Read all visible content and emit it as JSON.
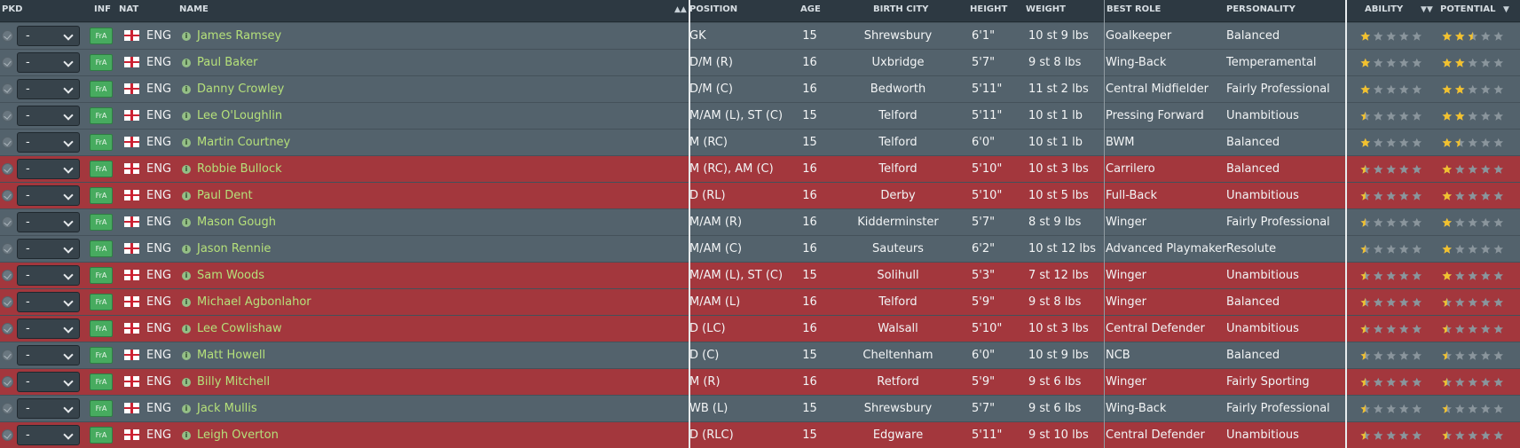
{
  "columns": {
    "pkd": "PKD",
    "inf": "INF",
    "nat": "NAT",
    "name": "NAME",
    "position": "POSITION",
    "age": "AGE",
    "birth_city": "BIRTH CITY",
    "height": "HEIGHT",
    "weight": "WEIGHT",
    "best_role": "BEST ROLE",
    "personality": "PERSONALITY",
    "ability": "ABILITY",
    "potential": "POTENTIAL"
  },
  "sort_column": "name",
  "colors": {
    "row_blue": "#53626c",
    "row_red": "#a3373d",
    "name": "#b5e07a",
    "star": "#f2c12e",
    "star_empty": "#8a959c"
  },
  "players": [
    {
      "pkd": "-",
      "inf": "FrA",
      "nat": "ENG",
      "name": "James Ramsey",
      "position": "GK",
      "age": "15",
      "birth_city": "Shrewsbury",
      "height": "6'1\"",
      "weight": "10 st 9 lbs",
      "best_role": "Goalkeeper",
      "personality": "Balanced",
      "ability": 1,
      "potential": 2.5,
      "highlight": "blue"
    },
    {
      "pkd": "-",
      "inf": "FrA",
      "nat": "ENG",
      "name": "Paul Baker",
      "position": "D/M (R)",
      "age": "16",
      "birth_city": "Uxbridge",
      "height": "5'7\"",
      "weight": "9 st 8 lbs",
      "best_role": "Wing-Back",
      "personality": "Temperamental",
      "ability": 1,
      "potential": 2,
      "highlight": "blue"
    },
    {
      "pkd": "-",
      "inf": "FrA",
      "nat": "ENG",
      "name": "Danny Crowley",
      "position": "D/M (C)",
      "age": "16",
      "birth_city": "Bedworth",
      "height": "5'11\"",
      "weight": "11 st 2 lbs",
      "best_role": "Central Midfielder",
      "personality": "Fairly Professional",
      "ability": 1,
      "potential": 2,
      "highlight": "blue"
    },
    {
      "pkd": "-",
      "inf": "FrA",
      "nat": "ENG",
      "name": "Lee O'Loughlin",
      "position": "M/AM (L), ST (C)",
      "age": "15",
      "birth_city": "Telford",
      "height": "5'11\"",
      "weight": "10 st 1 lb",
      "best_role": "Pressing Forward",
      "personality": "Unambitious",
      "ability": 0.5,
      "potential": 2,
      "highlight": "blue"
    },
    {
      "pkd": "-",
      "inf": "FrA",
      "nat": "ENG",
      "name": "Martin Courtney",
      "position": "M (RC)",
      "age": "15",
      "birth_city": "Telford",
      "height": "6'0\"",
      "weight": "10 st 1 lb",
      "best_role": "BWM",
      "personality": "Balanced",
      "ability": 1,
      "potential": 1.5,
      "highlight": "blue"
    },
    {
      "pkd": "-",
      "inf": "FrA",
      "nat": "ENG",
      "name": "Robbie Bullock",
      "position": "M (RC), AM (C)",
      "age": "16",
      "birth_city": "Telford",
      "height": "5'10\"",
      "weight": "10 st 3 lbs",
      "best_role": "Carrilero",
      "personality": "Balanced",
      "ability": 0.5,
      "potential": 1,
      "highlight": "red"
    },
    {
      "pkd": "-",
      "inf": "FrA",
      "nat": "ENG",
      "name": "Paul Dent",
      "position": "D (RL)",
      "age": "16",
      "birth_city": "Derby",
      "height": "5'10\"",
      "weight": "10 st 5 lbs",
      "best_role": "Full-Back",
      "personality": "Unambitious",
      "ability": 0.5,
      "potential": 1,
      "highlight": "red"
    },
    {
      "pkd": "-",
      "inf": "FrA",
      "nat": "ENG",
      "name": "Mason Gough",
      "position": "M/AM (R)",
      "age": "16",
      "birth_city": "Kidderminster",
      "height": "5'7\"",
      "weight": "8 st 9 lbs",
      "best_role": "Winger",
      "personality": "Fairly Professional",
      "ability": 0.5,
      "potential": 1,
      "highlight": "blue"
    },
    {
      "pkd": "-",
      "inf": "FrA",
      "nat": "ENG",
      "name": "Jason Rennie",
      "position": "M/AM (C)",
      "age": "16",
      "birth_city": "Sauteurs",
      "height": "6'2\"",
      "weight": "10 st 12 lbs",
      "best_role": "Advanced Playmaker",
      "personality": "Resolute",
      "ability": 0.5,
      "potential": 1,
      "highlight": "blue"
    },
    {
      "pkd": "-",
      "inf": "FrA",
      "nat": "ENG",
      "name": "Sam Woods",
      "position": "M/AM (L), ST (C)",
      "age": "15",
      "birth_city": "Solihull",
      "height": "5'3\"",
      "weight": "7 st 12 lbs",
      "best_role": "Winger",
      "personality": "Unambitious",
      "ability": 0.5,
      "potential": 1,
      "highlight": "red"
    },
    {
      "pkd": "-",
      "inf": "FrA",
      "nat": "ENG",
      "name": "Michael Agbonlahor",
      "position": "M/AM (L)",
      "age": "16",
      "birth_city": "Telford",
      "height": "5'9\"",
      "weight": "9 st 8 lbs",
      "best_role": "Winger",
      "personality": "Balanced",
      "ability": 0.5,
      "potential": 0.5,
      "highlight": "red"
    },
    {
      "pkd": "-",
      "inf": "FrA",
      "nat": "ENG",
      "name": "Lee Cowlishaw",
      "position": "D (LC)",
      "age": "16",
      "birth_city": "Walsall",
      "height": "5'10\"",
      "weight": "10 st 3 lbs",
      "best_role": "Central Defender",
      "personality": "Unambitious",
      "ability": 0.5,
      "potential": 0.5,
      "highlight": "red"
    },
    {
      "pkd": "-",
      "inf": "FrA",
      "nat": "ENG",
      "name": "Matt Howell",
      "position": "D (C)",
      "age": "15",
      "birth_city": "Cheltenham",
      "height": "6'0\"",
      "weight": "10 st 9 lbs",
      "best_role": "NCB",
      "personality": "Balanced",
      "ability": 0.5,
      "potential": 0.5,
      "highlight": "blue"
    },
    {
      "pkd": "-",
      "inf": "FrA",
      "nat": "ENG",
      "name": "Billy Mitchell",
      "position": "M (R)",
      "age": "16",
      "birth_city": "Retford",
      "height": "5'9\"",
      "weight": "9 st 6 lbs",
      "best_role": "Winger",
      "personality": "Fairly Sporting",
      "ability": 0.5,
      "potential": 0.5,
      "highlight": "red"
    },
    {
      "pkd": "-",
      "inf": "FrA",
      "nat": "ENG",
      "name": "Jack Mullis",
      "position": "WB (L)",
      "age": "15",
      "birth_city": "Shrewsbury",
      "height": "5'7\"",
      "weight": "9 st 6 lbs",
      "best_role": "Wing-Back",
      "personality": "Fairly Professional",
      "ability": 0.5,
      "potential": 0.5,
      "highlight": "blue"
    },
    {
      "pkd": "-",
      "inf": "FrA",
      "nat": "ENG",
      "name": "Leigh Overton",
      "position": "D (RLC)",
      "age": "15",
      "birth_city": "Edgware",
      "height": "5'11\"",
      "weight": "9 st 10 lbs",
      "best_role": "Central Defender",
      "personality": "Unambitious",
      "ability": 0.5,
      "potential": 0.5,
      "highlight": "red"
    }
  ]
}
